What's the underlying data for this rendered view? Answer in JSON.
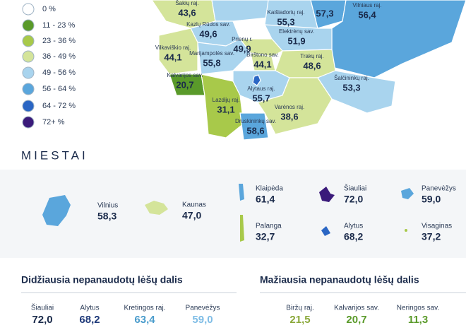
{
  "legend": [
    {
      "label": "0 %",
      "color": "#ffffff"
    },
    {
      "label": "11 - 23 %",
      "color": "#5a9a2a"
    },
    {
      "label": "23 - 36 %",
      "color": "#a8c94a"
    },
    {
      "label": "36 - 49 %",
      "color": "#d4e49a"
    },
    {
      "label": "49 - 56 %",
      "color": "#a9d4ee"
    },
    {
      "label": "56 - 64 %",
      "color": "#5aa6dc"
    },
    {
      "label": "64 - 72 %",
      "color": "#2a66c4"
    },
    {
      "label": "72+ %",
      "color": "#3a1a7a"
    }
  ],
  "regions": [
    {
      "name": "Šakių raj.",
      "value": "43,6"
    },
    {
      "name": "Kaišiadorių raj.",
      "value": "55,3"
    },
    {
      "value": "57,3"
    },
    {
      "name": "Vilniaus raj.",
      "value": "56,4"
    },
    {
      "name": "Kazlų Rūdos sav.",
      "value": "49,6"
    },
    {
      "name": "Elektrėnų sav.",
      "value": "51,9"
    },
    {
      "name": "Vilkaviškio raj.",
      "value": "44,1"
    },
    {
      "name": "Marijampolės sav.",
      "value": "55,8"
    },
    {
      "name": "Prienų r.",
      "value": "49,9"
    },
    {
      "name": "Birštono sav.",
      "value": "44,1"
    },
    {
      "name": "Trakų raj.",
      "value": "48,6"
    },
    {
      "name": "Kalvarijos sav.",
      "value": "20,7"
    },
    {
      "name": "Alytaus raj.",
      "value": "55,7"
    },
    {
      "name": "Šalčininkų raj.",
      "value": "53,3"
    },
    {
      "name": "Lazdijų raj.",
      "value": "31,1"
    },
    {
      "name": "Varėnos raj.",
      "value": "38,6"
    },
    {
      "name": "Druskininkų sav.",
      "value": "58,6"
    }
  ],
  "cities": {
    "title": "MIESTAI",
    "items": [
      {
        "name": "Vilnius",
        "value": "58,3"
      },
      {
        "name": "Kaunas",
        "value": "47,0"
      },
      {
        "name": "Klaipėda",
        "value": "61,4"
      },
      {
        "name": "Šiauliai",
        "value": "72,0"
      },
      {
        "name": "Panevėžys",
        "value": "59,0"
      },
      {
        "name": "Palanga",
        "value": "32,7"
      },
      {
        "name": "Alytus",
        "value": "68,2"
      },
      {
        "name": "Visaginas",
        "value": "37,2"
      }
    ]
  },
  "highest": {
    "title": "Didžiausia nepanaudotų lėšų dalis",
    "items": [
      {
        "name": "Šiauliai",
        "value": "72,0"
      },
      {
        "name": "Alytus",
        "value": "68,2"
      },
      {
        "name": "Kretingos raj.",
        "value": "63,4"
      },
      {
        "name": "Panevėžys",
        "value": "59,0"
      }
    ]
  },
  "lowest": {
    "title": "Mažiausia nepanaudotų lėšų dalis",
    "items": [
      {
        "name": "Biržų raj.",
        "value": "21,5"
      },
      {
        "name": "Kalvarijos sav.",
        "value": "20,7"
      },
      {
        "name": "Neringos sav.",
        "value": "11,3"
      }
    ]
  }
}
